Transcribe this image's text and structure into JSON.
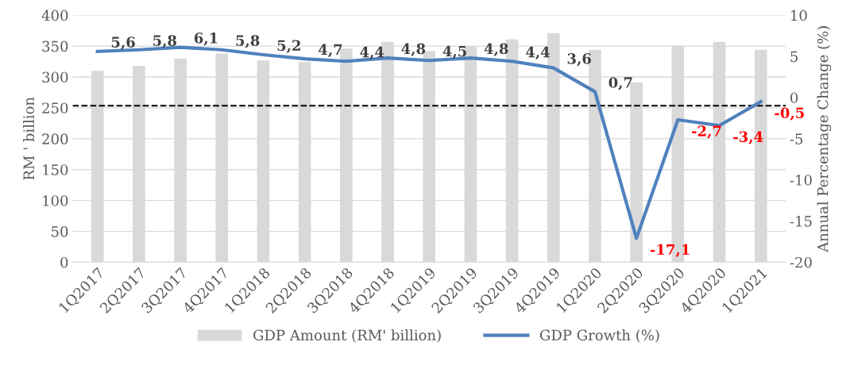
{
  "chart_data": {
    "type": "bar",
    "categories": [
      "1Q2017",
      "2Q2017",
      "3Q2017",
      "4Q2017",
      "1Q2018",
      "2Q2018",
      "3Q2018",
      "4Q2018",
      "1Q2019",
      "2Q2019",
      "3Q2019",
      "4Q2019",
      "1Q2020",
      "2Q2020",
      "3Q2020",
      "4Q2020",
      "1Q2021"
    ],
    "series": [
      {
        "name": "GDP Amount (RM' billion)",
        "color": "#d9d9d9",
        "values": [
          310,
          318,
          330,
          338,
          327,
          324,
          346,
          357,
          342,
          349,
          361,
          371,
          344,
          291,
          351,
          357,
          344
        ]
      },
      {
        "name": "GDP Growth (%)",
        "type": "line",
        "axis": "y2",
        "color": "#4f81bd",
        "values": [
          5.6,
          5.8,
          6.1,
          5.8,
          5.2,
          4.7,
          4.4,
          4.8,
          4.5,
          4.8,
          4.4,
          3.6,
          0.7,
          -17.1,
          -2.7,
          -3.4,
          -0.5
        ],
        "value_labels": [
          "5,6",
          "5,8",
          "6,1",
          "5,8",
          "5,2",
          "4,7",
          "4,4",
          "4,8",
          "4,5",
          "4,8",
          "4,4",
          "3,6",
          "0,7",
          "-17,1",
          "-2,7",
          "-3,4",
          "-0,5"
        ]
      }
    ],
    "ylabel": "RM ' billion",
    "y2label": "Annual Percentage Change (%)",
    "ylim": [
      0,
      400
    ],
    "yticks": [
      0,
      50,
      100,
      150,
      200,
      250,
      300,
      350,
      400
    ],
    "y2lim": [
      -20,
      10
    ],
    "y2ticks": [
      -20,
      -15,
      -10,
      -5,
      0,
      5,
      10
    ],
    "ref_lines": [
      {
        "axis": "y2",
        "value": -1,
        "color": "#000000",
        "line_style": "dashed"
      }
    ],
    "grid": "y",
    "legend": "bottom",
    "marker": "none"
  }
}
